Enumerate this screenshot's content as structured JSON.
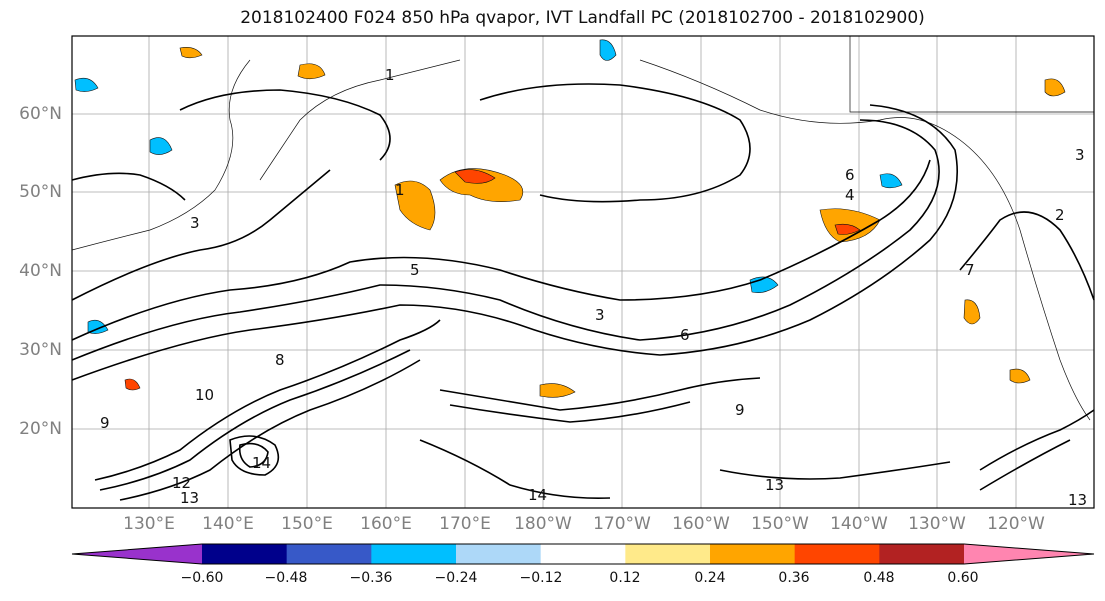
{
  "title": "2018102400 F024 850 hPa qvapor, IVT Landfall PC (2018102700 - 2018102900)",
  "map": {
    "lat_labels": [
      "60°N",
      "50°N",
      "40°N",
      "30°N",
      "20°N"
    ],
    "lon_labels": [
      "130°E",
      "140°E",
      "150°E",
      "160°E",
      "170°E",
      "180°W",
      "170°W",
      "160°W",
      "150°W",
      "140°W",
      "130°W",
      "120°W"
    ],
    "lat_range": [
      10,
      70
    ],
    "lon_range_label": "120°E – 115°W",
    "contour_labels": [
      "1",
      "1",
      "2",
      "3",
      "3",
      "3",
      "4",
      "5",
      "6",
      "6",
      "7",
      "8",
      "9",
      "9",
      "10",
      "12",
      "13",
      "13",
      "13",
      "14",
      "14"
    ]
  },
  "colorbar": {
    "colors": [
      "#9932cc",
      "#00008b",
      "#3759c8",
      "#00bfff",
      "#add8f8",
      "#ffffff",
      "#ffea8a",
      "#ffa500",
      "#ff4500",
      "#b22222",
      "#ff85b0"
    ],
    "tick_labels": [
      "−0.60",
      "−0.48",
      "−0.36",
      "−0.24",
      "−0.12",
      "0.12",
      "0.24",
      "0.36",
      "0.48",
      "0.60"
    ]
  }
}
